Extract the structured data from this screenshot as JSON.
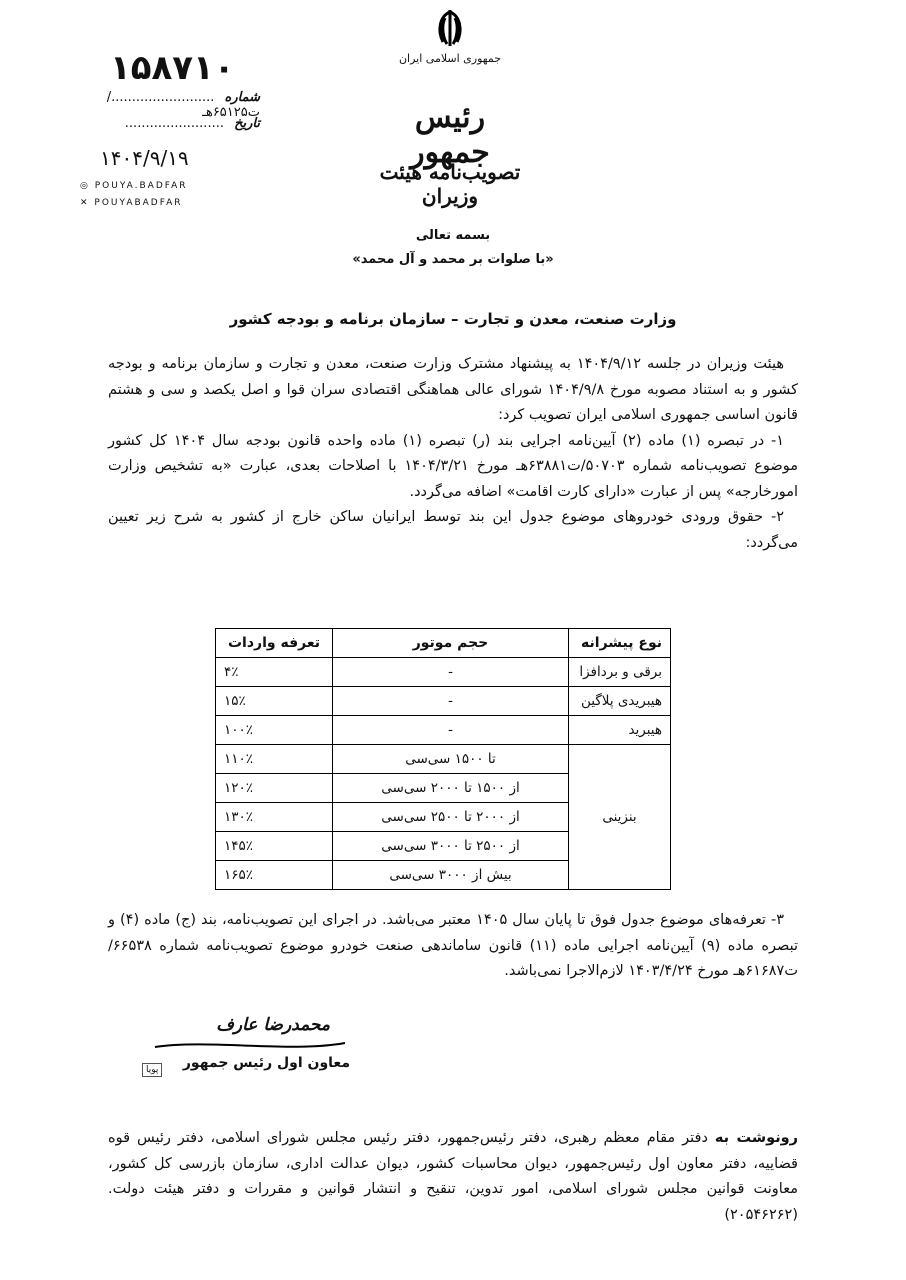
{
  "header": {
    "country": "جمهوری اسلامی ایران",
    "office": "رئیس جمهور",
    "doc_type": "تصویب‌نامه هیئت وزیران",
    "handwritten_number": "۱۵۸۷۱۰",
    "number_label": "شماره",
    "number_value": "........................./ت۶۵۱۲۵هـ",
    "date_label": "تاریخ",
    "date_value": "........................",
    "handwritten_date": "۱۴۰۴/۹/۱۹",
    "social": {
      "instagram": "POUYA.BADFAR",
      "x": "POUYABADFAR"
    }
  },
  "invocation": "بسمه تعالی",
  "salutation": "«با صلوات بر محمد و آل محمد»",
  "addressee": "وزارت صنعت، معدن و تجارت – سازمان برنامه و بودجه کشور",
  "paragraphs": [
    "هیئت وزیران در جلسه ۱۴۰۴/۹/۱۲ به پیشنهاد مشترک وزارت صنعت، معدن و تجارت و سازمان برنامه و بودجه کشور و به استناد مصوبه مورخ ۱۴۰۴/۹/۸ شورای عالی هماهنگی اقتصادی سران قوا و اصل یکصد و سی و هشتم قانون اساسی جمهوری اسلامی ایران تصویب کرد:",
    "۱- در تبصره (۱) ماده (۲) آیین‌نامه اجرایی بند (ر) تبصره (۱) ماده واحده قانون بودجه سال ۱۴۰۴ کل کشور موضوع تصویب‌نامه شماره ۵۰۷۰۳/ت۶۳۸۸۱هـ مورخ ۱۴۰۴/۳/۲۱ با اصلاحات بعدی، عبارت «به تشخیص وزارت امورخارجه» پس از عبارت «دارای کارت اقامت» اضافه می‌گردد.",
    "۲- حقوق ورودی خودروهای موضوع جدول این بند توسط ایرانیان ساکن خارج از کشور به شرح زیر تعیین می‌گردد:"
  ],
  "table": {
    "headers": [
      "نوع پیشرانه",
      "حجم موتور",
      "تعرفه واردات"
    ],
    "rows": [
      {
        "type": "برقی و بردافزا",
        "engine": "-",
        "tariff": "۴٪"
      },
      {
        "type": "هیبریدی پلاگین",
        "engine": "-",
        "tariff": "۱۵٪"
      },
      {
        "type": "هیبرید",
        "engine": "-",
        "tariff": "۱۰۰٪"
      },
      {
        "type": "بنزینی",
        "engine": "تا ۱۵۰۰ سی‌سی",
        "tariff": "۱۱۰٪"
      },
      {
        "type": "",
        "engine": "از ۱۵۰۰ تا ۲۰۰۰ سی‌سی",
        "tariff": "۱۲۰٪"
      },
      {
        "type": "",
        "engine": "از ۲۰۰۰ تا ۲۵۰۰ سی‌سی",
        "tariff": "۱۳۰٪"
      },
      {
        "type": "",
        "engine": "از ۲۵۰۰ تا ۳۰۰۰ سی‌سی",
        "tariff": "۱۴۵٪"
      },
      {
        "type": "",
        "engine": "بیش از ۳۰۰۰ سی‌سی",
        "tariff": "۱۶۵٪"
      }
    ]
  },
  "paragraph3": "۳- تعرفه‌های موضوع جدول فوق تا پایان سال ۱۴۰۵ معتبر می‌باشد. در اجرای این تصویب‌نامه، بند (ج) ماده (۴) و تبصره ماده (۹) آیین‌نامه اجرایی ماده (۱۱) قانون ساماندهی صنعت خودرو موضوع تصویب‌نامه شماره ۶۶۵۳۸/ت۶۱۶۸۷هـ مورخ ۱۴۰۳/۴/۲۴ لازم‌الاجرا نمی‌باشد.",
  "signature": {
    "name": "محمدرضا عارف",
    "title": "معاون اول رئیس جمهور",
    "stamp": "پویا بادفر"
  },
  "cc": {
    "label": "رونوشت به",
    "text": "دفتر مقام معظم رهبری، دفتر رئیس‌جمهور، دفتر رئیس مجلس شورای اسلامی، دفتر رئیس قوه قضاییه، دفتر معاون اول رئیس‌جمهور، دیوان محاسبات کشور، دیوان عدالت اداری، سازمان بازرسی کل کشور، معاونت قوانین مجلس شورای اسلامی، امور تدوین، تنقیح و انتشار قوانین و مقررات و دفتر هیئت دولت. (۲۰۵۴۶۲۶۲)"
  }
}
